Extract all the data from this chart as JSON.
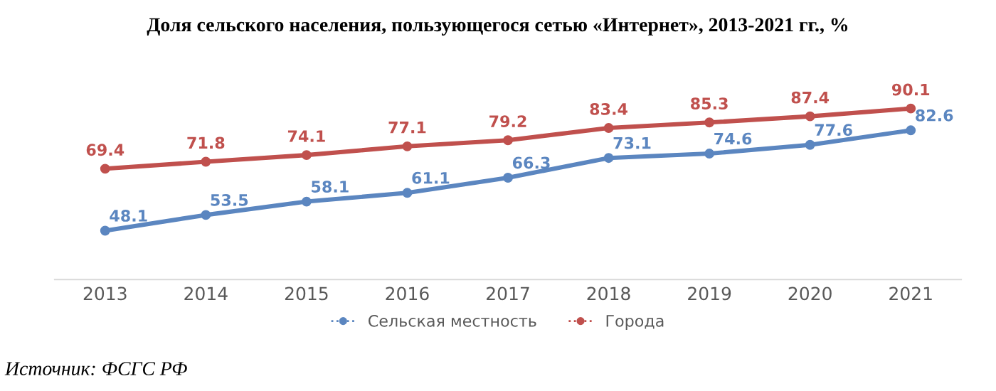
{
  "chart_data": {
    "type": "line",
    "title": "Доля сельского населения, пользующегося сетью «Интернет», 2013-2021 гг., %",
    "categories": [
      "2013",
      "2014",
      "2015",
      "2016",
      "2017",
      "2018",
      "2019",
      "2020",
      "2021"
    ],
    "series": [
      {
        "name": "Сельская местность",
        "color": "#5b86c0",
        "values": [
          48.1,
          53.5,
          58.1,
          61.1,
          66.3,
          73.1,
          74.6,
          77.6,
          82.6
        ]
      },
      {
        "name": "Города",
        "color": "#c0504d",
        "values": [
          69.4,
          71.8,
          74.1,
          77.1,
          79.2,
          83.4,
          85.3,
          87.4,
          90.1
        ]
      }
    ],
    "tick_labels": "x",
    "data_labels": true,
    "marker": "circle",
    "line_style": "solid",
    "grid": false,
    "legend": "bottom",
    "annotations": [
      "Источник: ФСГС РФ"
    ]
  }
}
